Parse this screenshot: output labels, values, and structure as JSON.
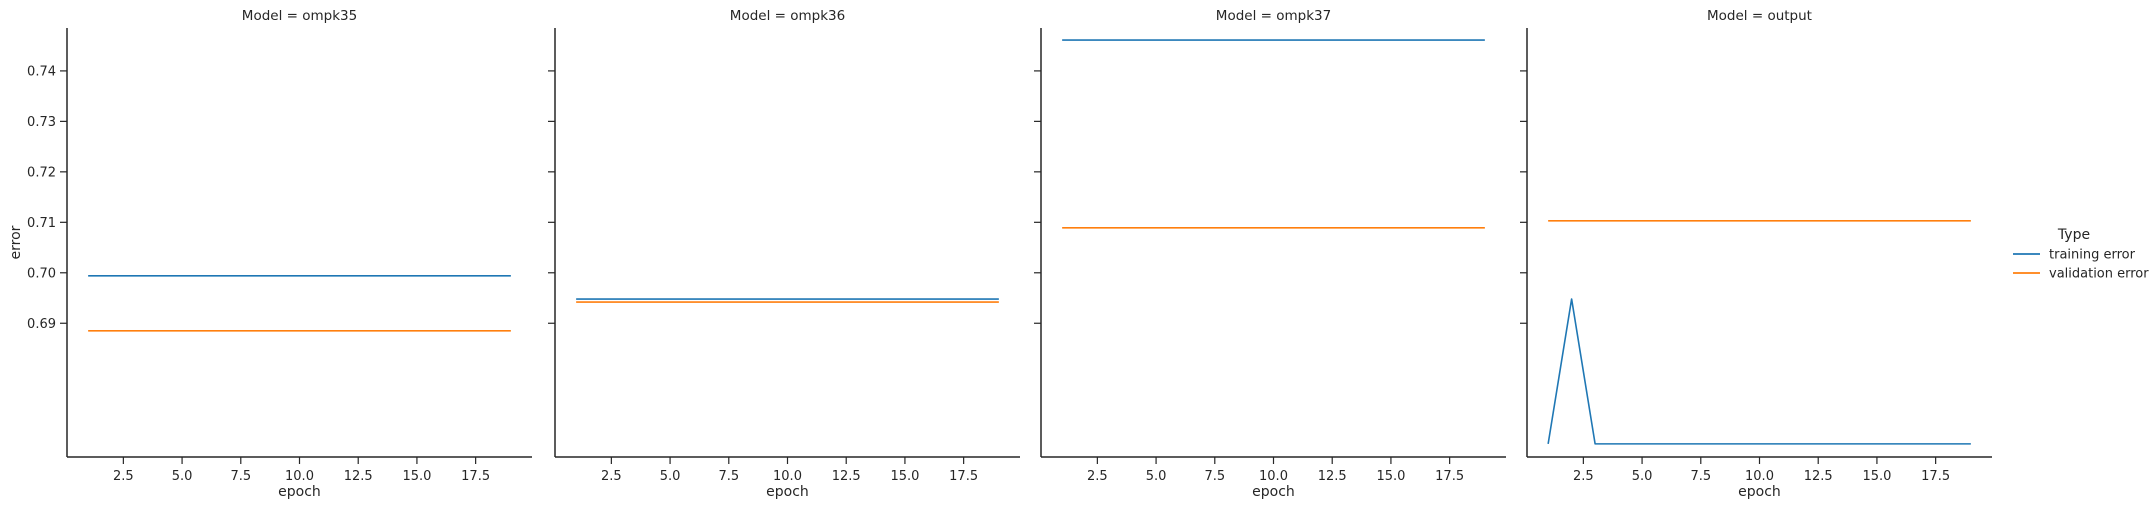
{
  "chart_data": {
    "type": "line",
    "facet_label": "Model",
    "legend_title": "Type",
    "legend_placement": "right",
    "xlabel": "epoch",
    "ylabel": "error",
    "xlim": [
      0.1,
      19.9
    ],
    "ylim": [
      0.6635,
      0.7485
    ],
    "x_ticks": [
      "2.5",
      "5.0",
      "7.5",
      "10.0",
      "12.5",
      "15.0",
      "17.5"
    ],
    "x_tick_values": [
      2.5,
      5.0,
      7.5,
      10.0,
      12.5,
      15.0,
      17.5
    ],
    "y_ticks": [
      "0.69",
      "0.70",
      "0.71",
      "0.72",
      "0.73",
      "0.74"
    ],
    "y_tick_values": [
      0.69,
      0.7,
      0.71,
      0.72,
      0.73,
      0.74
    ],
    "grid": false,
    "series_colors": {
      "training error": "#1f77b4",
      "validation error": "#ff7f0e"
    },
    "legend": [
      "training error",
      "validation error"
    ],
    "panels": [
      {
        "title": "Model = ompk35",
        "model": "ompk35",
        "series": [
          {
            "name": "training error",
            "x": [
              1,
              19
            ],
            "y": [
              0.6994,
              0.6994
            ]
          },
          {
            "name": "validation error",
            "x": [
              1,
              19
            ],
            "y": [
              0.6885,
              0.6885
            ]
          }
        ]
      },
      {
        "title": "Model = ompk36",
        "model": "ompk36",
        "series": [
          {
            "name": "training error",
            "x": [
              1,
              19
            ],
            "y": [
              0.6948,
              0.6948
            ]
          },
          {
            "name": "validation error",
            "x": [
              1,
              19
            ],
            "y": [
              0.6942,
              0.6942
            ]
          }
        ]
      },
      {
        "title": "Model = ompk37",
        "model": "ompk37",
        "series": [
          {
            "name": "training error",
            "x": [
              1,
              19
            ],
            "y": [
              0.7461,
              0.7461
            ]
          },
          {
            "name": "validation error",
            "x": [
              1,
              19
            ],
            "y": [
              0.7089,
              0.7089
            ]
          }
        ]
      },
      {
        "title": "Model = output",
        "model": "output",
        "series": [
          {
            "name": "training error",
            "x": [
              1,
              2,
              3,
              4,
              5,
              6,
              7,
              8,
              9,
              10,
              11,
              12,
              13,
              14,
              15,
              16,
              17,
              18,
              19
            ],
            "y": [
              0.6661,
              0.6948,
              0.6661,
              0.6661,
              0.6661,
              0.6661,
              0.6661,
              0.6661,
              0.6661,
              0.6661,
              0.6661,
              0.6661,
              0.6661,
              0.6661,
              0.6661,
              0.6661,
              0.6661,
              0.6661,
              0.6661
            ]
          },
          {
            "name": "validation error",
            "x": [
              1,
              19
            ],
            "y": [
              0.7103,
              0.7103
            ]
          }
        ]
      }
    ]
  }
}
